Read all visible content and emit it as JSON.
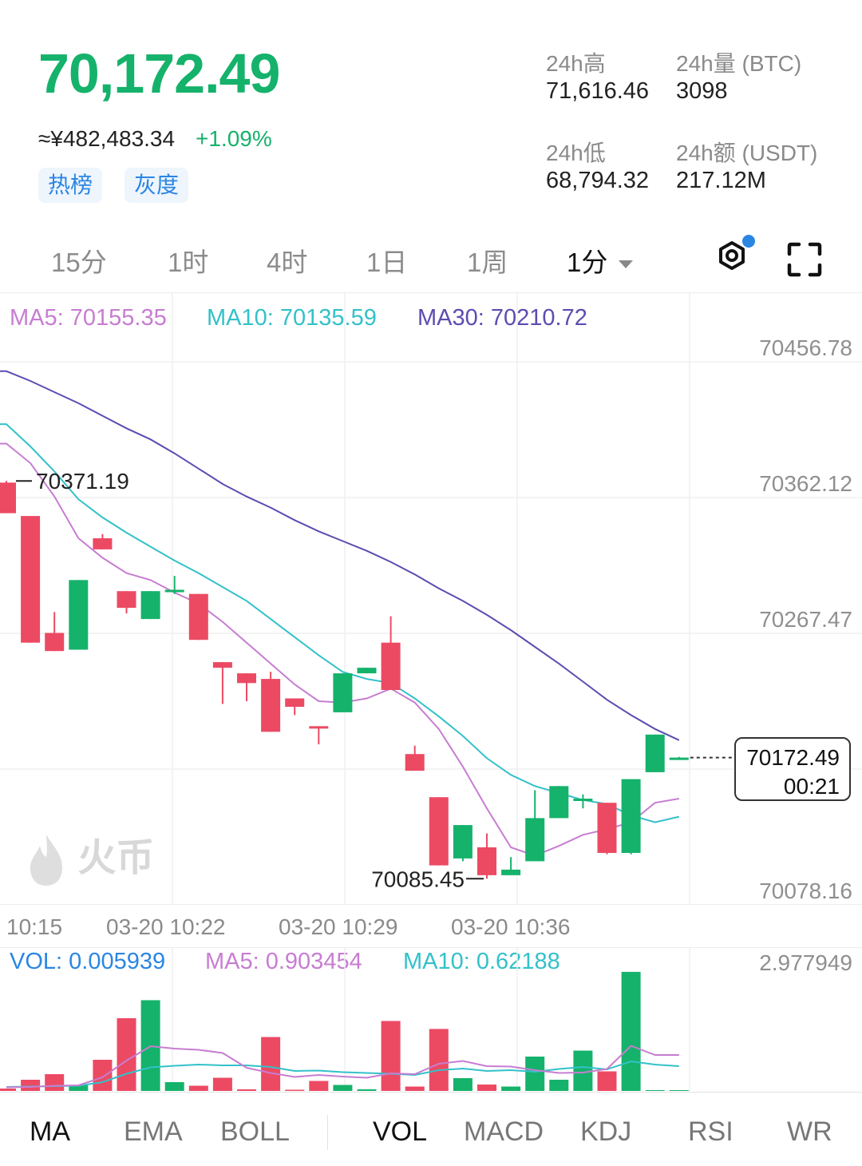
{
  "header": {
    "price": "70,172.49",
    "cny_price": "≈¥482,483.34",
    "change_pct": "+1.09%",
    "tags": [
      "热榜",
      "灰度"
    ]
  },
  "stats": {
    "high_label": "24h高",
    "high_value": "71,616.46",
    "vol_label": "24h量 (BTC)",
    "vol_value": "3098",
    "low_label": "24h低",
    "low_value": "68,794.32",
    "amt_label": "24h额 (USDT)",
    "amt_value": "217.12M"
  },
  "timeframes": [
    "15分",
    "1时",
    "4时",
    "1日",
    "1周"
  ],
  "active_timeframe": "1分",
  "ma_legend": {
    "ma5": "MA5: 70155.35",
    "ma10": "MA10: 70135.59",
    "ma30": "MA30: 70210.72"
  },
  "price_axis": [
    "70456.78",
    "70362.12",
    "70267.47",
    "70078.16"
  ],
  "chart_annotations": {
    "high": "70371.19",
    "low": "70085.45",
    "current_price": "70172.49",
    "countdown": "00:21"
  },
  "watermark": "火币",
  "time_axis": [
    "10:15",
    "03-20 10:22",
    "03-20 10:29",
    "03-20 10:36"
  ],
  "vol_legend": {
    "vol": "VOL: 0.005939",
    "ma5": "MA5: 0.903454",
    "ma10": "MA10: 0.62188"
  },
  "vol_axis_max": "2.977949",
  "indicator_tabs_main": [
    "MA",
    "EMA",
    "BOLL"
  ],
  "indicator_tabs_sub": [
    "VOL",
    "MACD",
    "KDJ",
    "RSI",
    "WR"
  ],
  "colors": {
    "up": "#15b26b",
    "down": "#ec4a63",
    "ma5": "#c77dd1",
    "ma10": "#33c1c9",
    "ma30": "#5b4db0",
    "vol_label": "#2a86e3"
  },
  "chart_data": {
    "type": "candlestick",
    "price_axis_min": 70078.16,
    "price_axis_max": 70456.78,
    "candles": [
      {
        "open": 70370,
        "close": 70348,
        "high": 70371.19,
        "low": 70348
      },
      {
        "open": 70346,
        "close": 70255,
        "high": 70346,
        "low": 70255
      },
      {
        "open": 70262,
        "close": 70249,
        "high": 70277,
        "low": 70249
      },
      {
        "open": 70250,
        "close": 70300,
        "high": 70300,
        "low": 70250
      },
      {
        "open": 70330,
        "close": 70322,
        "high": 70333,
        "low": 70322
      },
      {
        "open": 70292,
        "close": 70280,
        "high": 70292,
        "low": 70276
      },
      {
        "open": 70272,
        "close": 70292,
        "high": 70292,
        "low": 70272
      },
      {
        "open": 70292,
        "close": 70293,
        "high": 70303,
        "low": 70290
      },
      {
        "open": 70290,
        "close": 70257,
        "high": 70290,
        "low": 70257
      },
      {
        "open": 70241,
        "close": 70237,
        "high": 70241,
        "low": 70211
      },
      {
        "open": 70233,
        "close": 70226,
        "high": 70233,
        "low": 70213
      },
      {
        "open": 70229,
        "close": 70191,
        "high": 70234,
        "low": 70191
      },
      {
        "open": 70215,
        "close": 70209,
        "high": 70215,
        "low": 70203
      },
      {
        "open": 70195,
        "close": 70194,
        "high": 70195,
        "low": 70182
      },
      {
        "open": 70205,
        "close": 70233,
        "high": 70233,
        "low": 70205
      },
      {
        "open": 70233,
        "close": 70237,
        "high": 70237,
        "low": 70233
      },
      {
        "open": 70255,
        "close": 70221,
        "high": 70274,
        "low": 70221
      },
      {
        "open": 70175,
        "close": 70163,
        "high": 70181,
        "low": 70163
      },
      {
        "open": 70144,
        "close": 70095,
        "high": 70144,
        "low": 70095
      },
      {
        "open": 70100,
        "close": 70124,
        "high": 70124,
        "low": 70098
      },
      {
        "open": 70108,
        "close": 70088,
        "high": 70118,
        "low": 70085.45
      },
      {
        "open": 70088,
        "close": 70092,
        "high": 70101,
        "low": 70088
      },
      {
        "open": 70098,
        "close": 70129,
        "high": 70149,
        "low": 70098
      },
      {
        "open": 70129,
        "close": 70152,
        "high": 70152,
        "low": 70129
      },
      {
        "open": 70143,
        "close": 70143,
        "high": 70146,
        "low": 70136
      },
      {
        "open": 70140,
        "close": 70104,
        "high": 70140,
        "low": 70103
      },
      {
        "open": 70104,
        "close": 70157,
        "high": 70157,
        "low": 70103
      },
      {
        "open": 70162,
        "close": 70189,
        "high": 70189,
        "low": 70162
      },
      {
        "open": 70172,
        "close": 70172.49,
        "high": 70173,
        "low": 70172
      }
    ],
    "ma5": [
      70398,
      70384,
      70360,
      70330,
      70316,
      70305,
      70300,
      70291,
      70283,
      70270,
      70255,
      70240,
      70225,
      70213,
      70212,
      70215,
      70222,
      70212,
      70193,
      70166,
      70136,
      70108,
      70102,
      70109,
      70117,
      70121,
      70126,
      70140,
      70143
    ],
    "ma10": [
      70412,
      70396,
      70378,
      70358,
      70345,
      70334,
      70324,
      70314,
      70305,
      70295,
      70285,
      70272,
      70259,
      70246,
      70234,
      70229,
      70226,
      70215,
      70202,
      70188,
      70172,
      70160,
      70152,
      70147,
      70142,
      70139,
      70131,
      70126,
      70130
    ],
    "ma30": [
      70450,
      70443,
      70435,
      70427,
      70418,
      70409,
      70401,
      70391,
      70380,
      70369,
      70360,
      70352,
      70343,
      70335,
      70328,
      70321,
      70313,
      70304,
      70294,
      70285,
      70275,
      70264,
      70252,
      70240,
      70227,
      70214,
      70203,
      70193,
      70185
    ],
    "volume": {
      "axis_max": 2.977949,
      "bars": [
        0.06,
        0.28,
        0.42,
        0.14,
        0.78,
        1.82,
        2.27,
        0.22,
        0.13,
        0.33,
        0.04,
        1.35,
        0.03,
        0.25,
        0.15,
        0.04,
        1.75,
        0.11,
        1.55,
        0.32,
        0.16,
        0.11,
        0.86,
        0.28,
        1.01,
        0.49,
        2.98,
        0.02,
        0.02
      ],
      "ma5": [
        0.09,
        0.1,
        0.13,
        0.14,
        0.34,
        0.76,
        1.12,
        1.06,
        1.03,
        0.95,
        0.58,
        0.45,
        0.35,
        0.4,
        0.36,
        0.33,
        0.44,
        0.42,
        0.68,
        0.75,
        0.62,
        0.61,
        0.52,
        0.45,
        0.46,
        0.55,
        1.13,
        0.9,
        0.9
      ],
      "ma10": [
        0.1,
        0.11,
        0.12,
        0.13,
        0.22,
        0.43,
        0.59,
        0.63,
        0.66,
        0.64,
        0.64,
        0.6,
        0.5,
        0.51,
        0.47,
        0.45,
        0.43,
        0.4,
        0.52,
        0.56,
        0.5,
        0.52,
        0.48,
        0.55,
        0.6,
        0.54,
        0.74,
        0.66,
        0.62
      ]
    }
  }
}
